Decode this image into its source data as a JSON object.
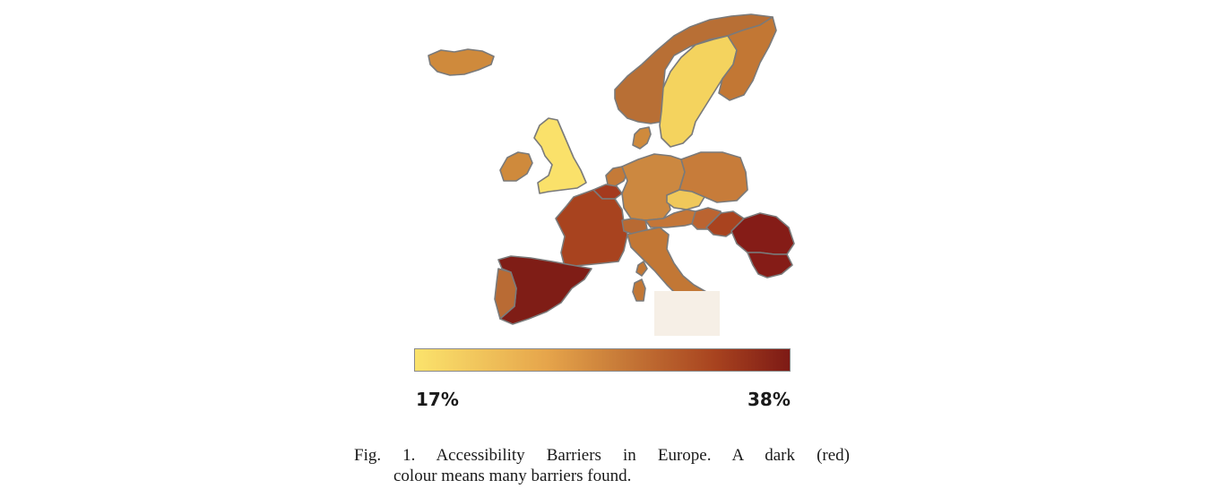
{
  "map": {
    "countries": [
      {
        "name": "Iceland",
        "color": "#cf8a3c"
      },
      {
        "name": "Norway",
        "color": "#b86f35"
      },
      {
        "name": "Sweden",
        "color": "#f4d35e"
      },
      {
        "name": "Finland",
        "color": "#c27734"
      },
      {
        "name": "Denmark",
        "color": "#cf8a3c"
      },
      {
        "name": "United Kingdom",
        "color": "#fae16a"
      },
      {
        "name": "Ireland",
        "color": "#cf8a3c"
      },
      {
        "name": "Netherlands",
        "color": "#c47a38"
      },
      {
        "name": "Belgium",
        "color": "#a43a1e"
      },
      {
        "name": "Germany",
        "color": "#cc8840"
      },
      {
        "name": "Poland",
        "color": "#c77c3a"
      },
      {
        "name": "Czech Republic",
        "color": "#f0c85a"
      },
      {
        "name": "Austria",
        "color": "#c47638"
      },
      {
        "name": "Hungary",
        "color": "#bb6431"
      },
      {
        "name": "Romania",
        "color": "#a9431f"
      },
      {
        "name": "Bulgaria",
        "color": "#851c17"
      },
      {
        "name": "Greece",
        "color": "#851c17"
      },
      {
        "name": "France",
        "color": "#a8431f"
      },
      {
        "name": "Switzerland",
        "color": "#b86a33"
      },
      {
        "name": "Italy",
        "color": "#c27735"
      },
      {
        "name": "Spain",
        "color": "#7f1d16"
      },
      {
        "name": "Portugal",
        "color": "#b96b34"
      },
      {
        "name": "Sardinia",
        "color": "#c27735"
      },
      {
        "name": "Corsica",
        "color": "#c27735"
      }
    ]
  },
  "legend": {
    "min_label": "17%",
    "max_label": "38%",
    "min_color": "#fbe36c",
    "max_color": "#7d1a15"
  },
  "caption": {
    "line1": "Fig. 1. Accessibility Barriers in Europe. A dark (red)",
    "line2": "colour means many barriers found."
  }
}
